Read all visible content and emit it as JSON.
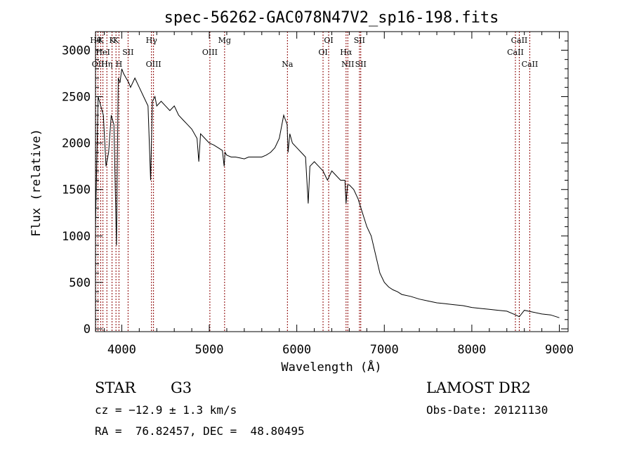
{
  "chart_data": {
    "type": "line",
    "title": "spec-56262-GAC078N47V2_sp16-198.fits",
    "xlabel": "Wavelength (Å)",
    "ylabel": "Flux (relative)",
    "xlim": [
      3700,
      9100
    ],
    "ylim": [
      -30,
      3200
    ],
    "x_ticks": [
      4000,
      5000,
      6000,
      7000,
      8000,
      9000
    ],
    "y_ticks": [
      0,
      500,
      1000,
      1500,
      2000,
      2500,
      3000
    ],
    "grid": false,
    "series": [
      {
        "x": [
          3700,
          3730,
          3760,
          3790,
          3820,
          3850,
          3880,
          3910,
          3940,
          3960,
          3980,
          4000,
          4020,
          4050,
          4080,
          4100,
          4150,
          4200,
          4250,
          4300,
          4330,
          4350,
          4380,
          4400,
          4450,
          4500,
          4550,
          4600,
          4650,
          4700,
          4750,
          4800,
          4860,
          4880,
          4900,
          4950,
          5000,
          5050,
          5100,
          5150,
          5170,
          5180,
          5200,
          5250,
          5300,
          5350,
          5400,
          5450,
          5500,
          5550,
          5600,
          5650,
          5700,
          5750,
          5800,
          5850,
          5890,
          5900,
          5920,
          5950,
          6000,
          6050,
          6100,
          6130,
          6150,
          6200,
          6250,
          6300,
          6350,
          6400,
          6450,
          6500,
          6550,
          6563,
          6580,
          6600,
          6650,
          6700,
          6750,
          6800,
          6850,
          6900,
          6950,
          7000,
          7050,
          7100,
          7150,
          7200,
          7300,
          7400,
          7500,
          7600,
          7700,
          7800,
          7900,
          8000,
          8100,
          8200,
          8300,
          8400,
          8500,
          8542,
          8600,
          8700,
          8800,
          8900,
          9000
        ],
        "y": [
          1100,
          2500,
          2400,
          2300,
          1750,
          1900,
          2300,
          2200,
          900,
          2700,
          2650,
          2800,
          2750,
          2700,
          2650,
          2600,
          2700,
          2600,
          2500,
          2400,
          1600,
          2450,
          2500,
          2400,
          2450,
          2400,
          2350,
          2400,
          2300,
          2250,
          2200,
          2150,
          2050,
          1800,
          2100,
          2050,
          2000,
          1980,
          1950,
          1920,
          1750,
          1900,
          1870,
          1850,
          1850,
          1840,
          1830,
          1850,
          1850,
          1850,
          1850,
          1870,
          1900,
          1950,
          2050,
          2300,
          2200,
          1900,
          2100,
          2000,
          1950,
          1900,
          1850,
          1350,
          1750,
          1800,
          1750,
          1700,
          1600,
          1700,
          1650,
          1600,
          1600,
          1350,
          1550,
          1550,
          1500,
          1400,
          1250,
          1100,
          1000,
          800,
          600,
          500,
          450,
          420,
          400,
          370,
          350,
          320,
          300,
          280,
          270,
          260,
          250,
          230,
          220,
          210,
          200,
          190,
          150,
          130,
          200,
          180,
          160,
          150,
          120
        ]
      }
    ],
    "annotations": [
      {
        "x": 3703,
        "label": "Hθ",
        "row": 1
      },
      {
        "x": 3728,
        "label": "OII",
        "row": 3
      },
      {
        "x": 3760,
        "label": "K",
        "row": 1
      },
      {
        "x": 3785,
        "label": "HeI",
        "row": 2
      },
      {
        "x": 3830,
        "label": "Hη",
        "row": 3
      },
      {
        "x": 3889,
        "label": "K",
        "row": 1
      },
      {
        "x": 3934,
        "label": "K",
        "row": 1
      },
      {
        "x": 3968,
        "label": "H",
        "row": 3
      },
      {
        "x": 4072,
        "label": "SII",
        "row": 2
      },
      {
        "x": 4340,
        "label": "Hγ",
        "row": 1
      },
      {
        "x": 4363,
        "label": "OIII",
        "row": 3
      },
      {
        "x": 5007,
        "label": "OIII",
        "row": 2
      },
      {
        "x": 5175,
        "label": "Mg",
        "row": 1
      },
      {
        "x": 5893,
        "label": "Na",
        "row": 3
      },
      {
        "x": 6300,
        "label": "OI",
        "row": 2
      },
      {
        "x": 6364,
        "label": "OI",
        "row": 1
      },
      {
        "x": 6563,
        "label": "Hα",
        "row": 2
      },
      {
        "x": 6583,
        "label": "NII",
        "row": 3
      },
      {
        "x": 6716,
        "label": "SII",
        "row": 1
      },
      {
        "x": 6731,
        "label": "SII",
        "row": 3
      },
      {
        "x": 8498,
        "label": "CaII",
        "row": 2
      },
      {
        "x": 8542,
        "label": "CaII",
        "row": 1
      },
      {
        "x": 8662,
        "label": "CaII",
        "row": 3
      }
    ]
  },
  "info": {
    "object_type": "STAR",
    "subclass": "G3",
    "survey": "LAMOST DR2",
    "cz": "cz = −12.9 ± 1.3 km/s",
    "obs_date": "Obs-Date: 20121130",
    "coords": "RA =  76.82457, DEC =  48.80495"
  },
  "colors": {
    "spectrum": "#000000",
    "line_markers": "#8b0000"
  }
}
